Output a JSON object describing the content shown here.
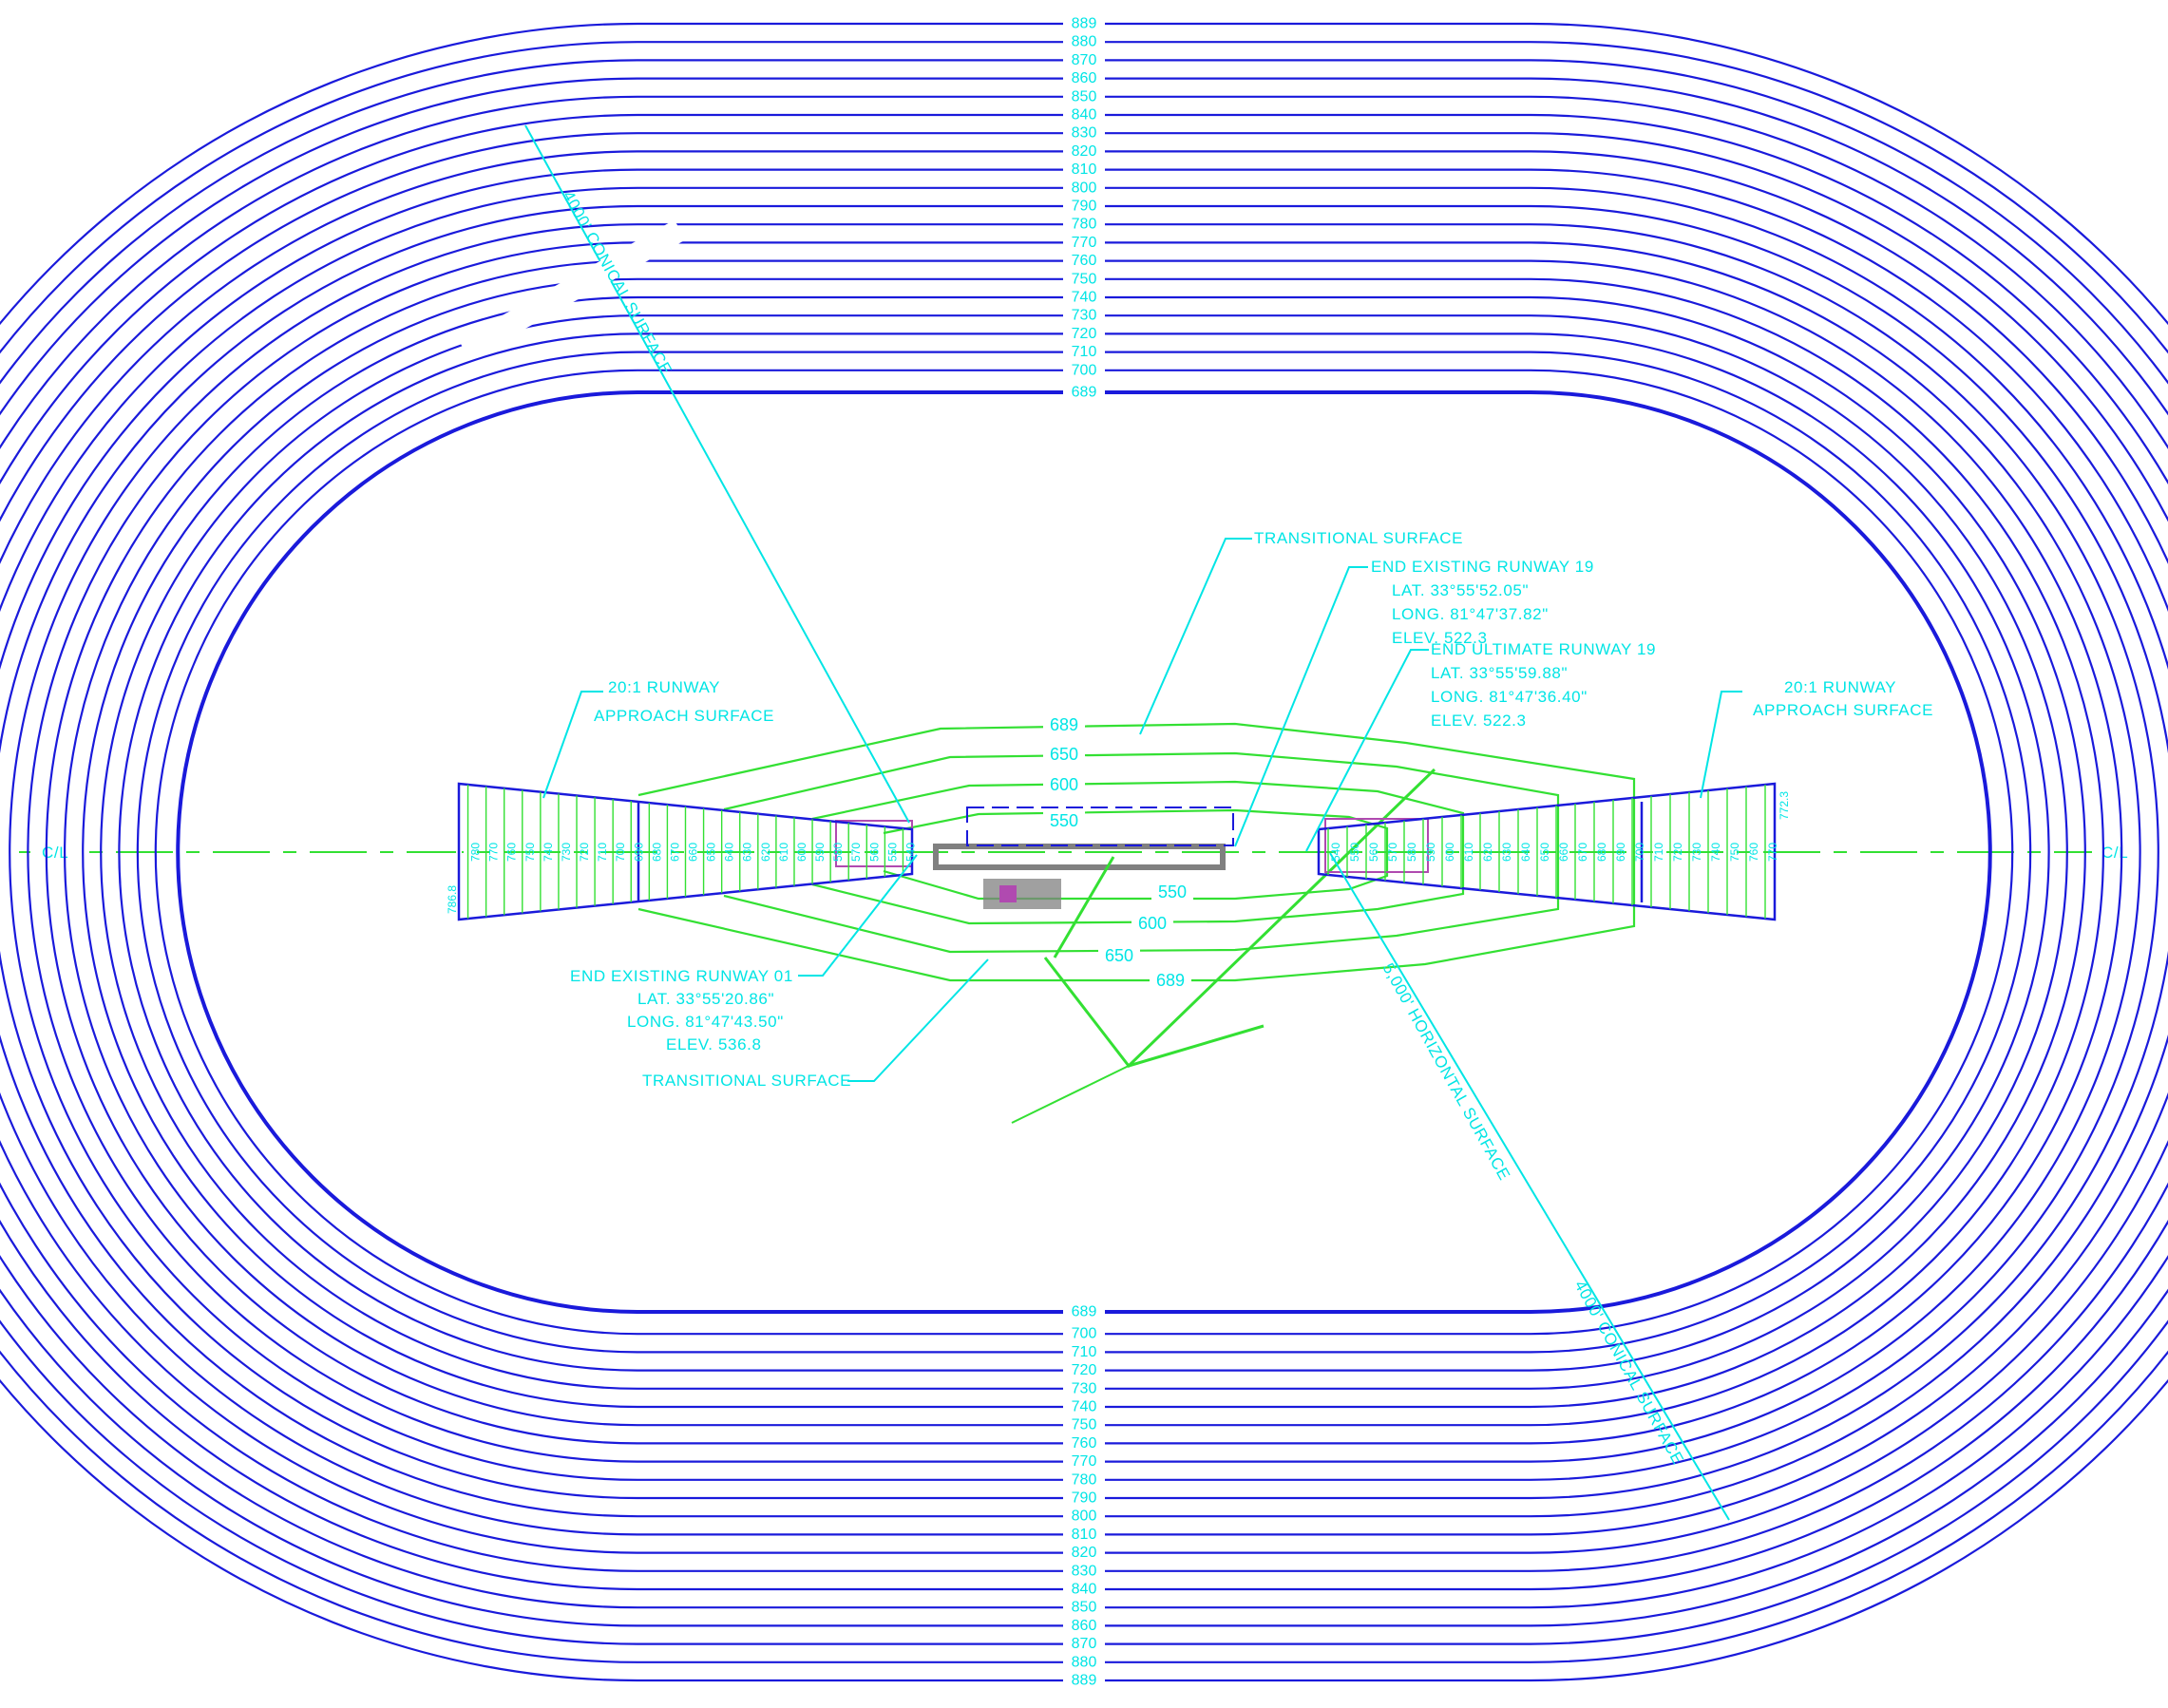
{
  "colors": {
    "contour": "#1a1adb",
    "label": "#00e5e5",
    "transitional": "#33e033",
    "background": "#ffffff"
  },
  "conical_top_labels": [
    "889",
    "880",
    "870",
    "860",
    "850",
    "840",
    "830",
    "820",
    "810",
    "800",
    "790",
    "780",
    "770",
    "760",
    "750",
    "740",
    "730",
    "720",
    "710",
    "700",
    "689"
  ],
  "conical_bottom_labels": [
    "689",
    "700",
    "710",
    "720",
    "730",
    "740",
    "750",
    "760",
    "770",
    "780",
    "790",
    "800",
    "810",
    "820",
    "830",
    "840",
    "850",
    "860",
    "870",
    "880",
    "889"
  ],
  "transitional_contours": [
    "689",
    "650",
    "600",
    "550"
  ],
  "transitional_contours_bottom": [
    "550",
    "600",
    "650",
    "689"
  ],
  "approach_left_labels": [
    "780",
    "770",
    "760",
    "750",
    "740",
    "730",
    "720",
    "710",
    "700",
    "690",
    "680",
    "670",
    "660",
    "650",
    "640",
    "630",
    "620",
    "610",
    "600",
    "590",
    "580",
    "570",
    "560",
    "550",
    "540"
  ],
  "approach_right_labels": [
    "540",
    "550",
    "560",
    "570",
    "580",
    "590",
    "600",
    "610",
    "620",
    "630",
    "640",
    "650",
    "660",
    "670",
    "680",
    "690",
    "700",
    "710",
    "720",
    "730",
    "740",
    "750",
    "760",
    "770"
  ],
  "approach_end_left": "786.8",
  "approach_end_right": "772.3",
  "centerline_label": "C/L",
  "callouts": {
    "conical_nw": "4000' CONICAL SURFACE",
    "conical_se": "4000' CONICAL SURFACE",
    "horizontal": "5,000' HORIZONTAL SURFACE",
    "transitional_top": "TRANSITIONAL SURFACE",
    "transitional_bottom": "TRANSITIONAL SURFACE",
    "approach_left_1": "20:1 RUNWAY",
    "approach_left_2": "APPROACH SURFACE",
    "approach_right_1": "20:1 RUNWAY",
    "approach_right_2": "APPROACH SURFACE",
    "end_existing_19": [
      "END EXISTING RUNWAY 19",
      "LAT. 33°55'52.05\"",
      "LONG. 81°47'37.82\"",
      "ELEV. 522.3"
    ],
    "end_ultimate_19": [
      "END ULTIMATE RUNWAY 19",
      "LAT. 33°55'59.88\"",
      "LONG. 81°47'36.40\"",
      "ELEV. 522.3"
    ],
    "end_existing_01": [
      "END EXISTING RUNWAY 01",
      "LAT. 33°55'20.86\"",
      "LONG. 81°47'43.50\"",
      "ELEV. 536.8"
    ]
  }
}
